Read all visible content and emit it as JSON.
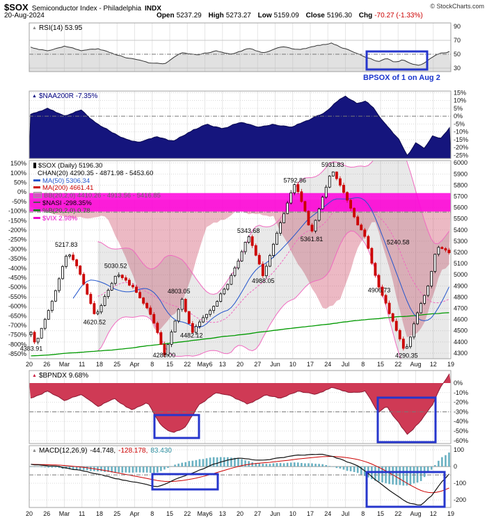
{
  "header": {
    "symbol": "$SOX",
    "name": "Semiconductor Index - Philadelphia",
    "exchange": "INDX",
    "copyright": "© StockCharts.com",
    "date": "20-Aug-2024",
    "quote": {
      "open_label": "Open",
      "open": "5237.29",
      "high_label": "High",
      "high": "5273.27",
      "low_label": "Low",
      "low": "5159.09",
      "close_label": "Close",
      "close": "5196.30",
      "chg_label": "Chg",
      "chg": "-70.27 (-1.33%)"
    }
  },
  "icons": {
    "panel_marker": "▲"
  },
  "annotations": {
    "bpsox_note": "BPSOX of 1 on Aug 2"
  },
  "xaxis": [
    "20",
    "26",
    "Mar",
    "11",
    "18",
    "25",
    "Apr",
    "8",
    "15",
    "22",
    "May6",
    "13",
    "20",
    "27",
    "Jun",
    "10",
    "17",
    "24",
    "Jul",
    "8",
    "15",
    "22",
    "Aug",
    "12",
    "19"
  ],
  "panels": {
    "rsi": {
      "label": "RSI(14) 53.95",
      "ticks": [
        "90",
        "70",
        "50",
        "30"
      ]
    },
    "naa": {
      "label": "$NAA200R -7.35%",
      "ticks": [
        "15%",
        "10%",
        "5%",
        "0%",
        "-5%",
        "-10%",
        "-15%",
        "-20%",
        "-25%"
      ]
    },
    "main": {
      "right_ticks": [
        "6000",
        "5900",
        "5800",
        "5700",
        "5600",
        "5500",
        "5400",
        "5300",
        "5200",
        "5100",
        "5000",
        "4900",
        "4800",
        "4700",
        "4600",
        "4500",
        "4400",
        "4300"
      ],
      "left_ticks": [
        "150%",
        "100%",
        "50%",
        "0%",
        "-50%",
        "-100%",
        "-150%",
        "-200%",
        "-250%",
        "-300%",
        "-350%",
        "-400%",
        "-450%",
        "-500%",
        "-550%",
        "-600%",
        "-650%",
        "-700%",
        "-750%",
        "-800%",
        "-850%"
      ],
      "legend": [
        {
          "swatch": "candle",
          "color": "#000000",
          "text": "$SOX (Daily) 5196.30"
        },
        {
          "swatch": "none",
          "color": "#000000",
          "text": "CHAN(20) 4290.35 - 4871.98 - 5453.60"
        },
        {
          "swatch": "line",
          "color": "#2255cc",
          "text": "MA(50) 5306.34"
        },
        {
          "swatch": "line",
          "color": "#cc0000",
          "text": "MA(200) 4661.41"
        },
        {
          "swatch": "band",
          "color": "#888888",
          "text": "BB(20,2,0) 4410.26 - 4913.56 - 5416.85"
        },
        {
          "swatch": "dash",
          "color": "#555555",
          "text": "$NASI -298.35%"
        },
        {
          "swatch": "line",
          "color": "#227722",
          "text": "%B(20,2,0) 0.78"
        },
        {
          "swatch": "line",
          "color": "#ee00cc",
          "text": "$VIX 2.98%"
        }
      ]
    },
    "bpndx": {
      "label": "$BPNDX 9.68%",
      "ticks": [
        "0%",
        "-10%",
        "-20%",
        "-30%",
        "-40%",
        "-50%",
        "-60%"
      ]
    },
    "macd": {
      "label": "MACD(12,26,9)",
      "v1": "-44.748,",
      "v2": "-128.178,",
      "v3": "83.430",
      "ticks": [
        "100",
        "0",
        "-100",
        "-200"
      ]
    }
  },
  "chart_data": [
    {
      "panel": "rsi",
      "type": "line",
      "name": "RSI(14)",
      "last": 53.95,
      "ylim": [
        25,
        95
      ],
      "hlines": [
        70,
        30
      ],
      "dash_line": 50,
      "waypoints": [
        [
          0,
          60
        ],
        [
          0.04,
          55
        ],
        [
          0.08,
          62
        ],
        [
          0.12,
          55
        ],
        [
          0.16,
          58
        ],
        [
          0.2,
          50
        ],
        [
          0.24,
          44
        ],
        [
          0.28,
          38
        ],
        [
          0.32,
          36
        ],
        [
          0.36,
          52
        ],
        [
          0.4,
          48
        ],
        [
          0.44,
          55
        ],
        [
          0.48,
          50
        ],
        [
          0.52,
          58
        ],
        [
          0.56,
          52
        ],
        [
          0.6,
          60
        ],
        [
          0.64,
          56
        ],
        [
          0.68,
          62
        ],
        [
          0.72,
          66
        ],
        [
          0.75,
          58
        ],
        [
          0.78,
          52
        ],
        [
          0.8,
          45
        ],
        [
          0.83,
          40
        ],
        [
          0.85,
          44
        ],
        [
          0.87,
          38
        ],
        [
          0.89,
          42
        ],
        [
          0.91,
          36
        ],
        [
          0.93,
          34
        ],
        [
          0.95,
          42
        ],
        [
          0.97,
          50
        ],
        [
          1,
          53.95
        ]
      ]
    },
    {
      "panel": "naa",
      "type": "area",
      "name": "$NAA200R",
      "last": -7.35,
      "ylim": [
        -27,
        16
      ],
      "dash_line": 0,
      "waypoints": [
        [
          0,
          1
        ],
        [
          0.04,
          5
        ],
        [
          0.08,
          0
        ],
        [
          0.12,
          4
        ],
        [
          0.15,
          -3
        ],
        [
          0.18,
          -8
        ],
        [
          0.22,
          -14
        ],
        [
          0.26,
          -17
        ],
        [
          0.3,
          -13
        ],
        [
          0.34,
          -16
        ],
        [
          0.38,
          -10
        ],
        [
          0.42,
          -5
        ],
        [
          0.46,
          -8
        ],
        [
          0.5,
          -4
        ],
        [
          0.54,
          -7
        ],
        [
          0.58,
          -5
        ],
        [
          0.62,
          -7
        ],
        [
          0.66,
          -3
        ],
        [
          0.7,
          2
        ],
        [
          0.73,
          9
        ],
        [
          0.75,
          13
        ],
        [
          0.78,
          8
        ],
        [
          0.8,
          10
        ],
        [
          0.82,
          5
        ],
        [
          0.84,
          -3
        ],
        [
          0.86,
          -9
        ],
        [
          0.88,
          -15
        ],
        [
          0.9,
          -25
        ],
        [
          0.92,
          -17
        ],
        [
          0.94,
          -21
        ],
        [
          0.96,
          -12
        ],
        [
          0.98,
          -14
        ],
        [
          1,
          -7.35
        ]
      ]
    },
    {
      "panel": "main",
      "type": "candlestick",
      "name": "$SOX Daily",
      "last": 5196.3,
      "ylim": [
        4250,
        6020
      ],
      "left_pct_ylim": [
        -875,
        165
      ],
      "vix_band": {
        "top": 5730,
        "bottom": 5565,
        "color": "#ff00dd"
      },
      "dash_line": 5560,
      "close_waypoints": [
        [
          0,
          4500
        ],
        [
          0.012,
          4383.91
        ],
        [
          0.05,
          4760
        ],
        [
          0.088,
          5217.83
        ],
        [
          0.115,
          5040
        ],
        [
          0.155,
          4620.52
        ],
        [
          0.205,
          5030.52
        ],
        [
          0.245,
          4880
        ],
        [
          0.285,
          4640
        ],
        [
          0.32,
          4288
        ],
        [
          0.36,
          4803.05
        ],
        [
          0.385,
          4482.12
        ],
        [
          0.43,
          4690
        ],
        [
          0.47,
          4920
        ],
        [
          0.52,
          5343.68
        ],
        [
          0.555,
          4988.05
        ],
        [
          0.6,
          5480
        ],
        [
          0.63,
          5792.86
        ],
        [
          0.652,
          5620
        ],
        [
          0.67,
          5361.81
        ],
        [
          0.72,
          5931.83
        ],
        [
          0.76,
          5640
        ],
        [
          0.8,
          5320
        ],
        [
          0.83,
          4906.73
        ],
        [
          0.895,
          4290.35
        ],
        [
          0.925,
          4660
        ],
        [
          0.95,
          4910
        ],
        [
          0.97,
          5240.58
        ],
        [
          1,
          5196.3
        ]
      ],
      "ma200_waypoints": [
        [
          0,
          4275
        ],
        [
          0.2,
          4330
        ],
        [
          0.4,
          4420
        ],
        [
          0.6,
          4510
        ],
        [
          0.8,
          4600
        ],
        [
          1,
          4661.41
        ]
      ],
      "nasi_pct_waypoints": [
        [
          0,
          -80
        ],
        [
          0.1,
          -140
        ],
        [
          0.18,
          -120
        ],
        [
          0.24,
          -420
        ],
        [
          0.3,
          -740
        ],
        [
          0.36,
          -600
        ],
        [
          0.42,
          -180
        ],
        [
          0.5,
          -100
        ],
        [
          0.58,
          -130
        ],
        [
          0.64,
          -380
        ],
        [
          0.7,
          -620
        ],
        [
          0.74,
          -560
        ],
        [
          0.78,
          -300
        ],
        [
          0.82,
          -140
        ],
        [
          0.86,
          -420
        ],
        [
          0.9,
          -780
        ],
        [
          0.94,
          -700
        ],
        [
          0.98,
          -420
        ],
        [
          1,
          -380
        ]
      ],
      "nasi_baseline_pct": -40,
      "price_labels": [
        {
          "t": 0.005,
          "price": 4383.91,
          "dy": 10,
          "text": "4383.91"
        },
        {
          "t": 0.088,
          "price": 5217.83,
          "dy": -5,
          "text": "5217.83"
        },
        {
          "t": 0.155,
          "price": 4620.52,
          "dy": 10,
          "text": "4620.52"
        },
        {
          "t": 0.205,
          "price": 5030.52,
          "dy": -5,
          "text": "5030.52"
        },
        {
          "t": 0.32,
          "price": 4288,
          "dy": 4,
          "text": "4288.00"
        },
        {
          "t": 0.355,
          "price": 4803.05,
          "dy": -5,
          "text": "4803.05"
        },
        {
          "t": 0.385,
          "price": 4482.12,
          "dy": 7,
          "text": "4482.12"
        },
        {
          "t": 0.52,
          "price": 5343.68,
          "dy": -5,
          "text": "5343.68"
        },
        {
          "t": 0.555,
          "price": 4988.05,
          "dy": 10,
          "text": "4988.05"
        },
        {
          "t": 0.63,
          "price": 5792.86,
          "dy": -5,
          "text": "5792.86"
        },
        {
          "t": 0.67,
          "price": 5361.81,
          "dy": 10,
          "text": "5361.81"
        },
        {
          "t": 0.72,
          "price": 5931.83,
          "dy": -5,
          "text": "5931.83"
        },
        {
          "t": 0.83,
          "price": 4906.73,
          "dy": 10,
          "text": "4906.73"
        },
        {
          "t": 0.895,
          "price": 4290.35,
          "dy": 5,
          "text": "4290.35"
        },
        {
          "t": 0.875,
          "price": 5240.58,
          "dy": -5,
          "text": "5240.58"
        }
      ]
    },
    {
      "panel": "bpndx",
      "type": "area",
      "name": "$BPNDX",
      "last": 9.68,
      "ylim": [
        -63,
        13
      ],
      "dash_line": -30,
      "waypoints": [
        [
          0,
          -16
        ],
        [
          0.04,
          -8
        ],
        [
          0.08,
          -18
        ],
        [
          0.12,
          -12
        ],
        [
          0.16,
          -24
        ],
        [
          0.2,
          -16
        ],
        [
          0.24,
          -28
        ],
        [
          0.28,
          -20
        ],
        [
          0.31,
          -44
        ],
        [
          0.34,
          -52
        ],
        [
          0.37,
          -46
        ],
        [
          0.4,
          -24
        ],
        [
          0.44,
          -10
        ],
        [
          0.48,
          -14
        ],
        [
          0.52,
          -22
        ],
        [
          0.56,
          -12
        ],
        [
          0.6,
          -16
        ],
        [
          0.64,
          -8
        ],
        [
          0.68,
          -12
        ],
        [
          0.72,
          -5
        ],
        [
          0.76,
          -10
        ],
        [
          0.8,
          -8
        ],
        [
          0.83,
          -30
        ],
        [
          0.85,
          -24
        ],
        [
          0.87,
          -36
        ],
        [
          0.9,
          -54
        ],
        [
          0.93,
          -40
        ],
        [
          0.96,
          -22
        ],
        [
          0.98,
          -4
        ],
        [
          1,
          9.68
        ]
      ]
    },
    {
      "panel": "macd",
      "type": "macd",
      "name": "MACD(12,26,9)",
      "last": -44.748,
      "ylim": [
        -245,
        125
      ],
      "dash_line": -50,
      "waypoints": [
        [
          0,
          15
        ],
        [
          0.05,
          5
        ],
        [
          0.1,
          -15
        ],
        [
          0.15,
          -40
        ],
        [
          0.2,
          -70
        ],
        [
          0.25,
          -95
        ],
        [
          0.3,
          -125
        ],
        [
          0.33,
          -95
        ],
        [
          0.37,
          -55
        ],
        [
          0.41,
          -15
        ],
        [
          0.45,
          25
        ],
        [
          0.5,
          55
        ],
        [
          0.55,
          35
        ],
        [
          0.6,
          55
        ],
        [
          0.65,
          70
        ],
        [
          0.7,
          75
        ],
        [
          0.74,
          45
        ],
        [
          0.78,
          5
        ],
        [
          0.82,
          -70
        ],
        [
          0.86,
          -150
        ],
        [
          0.9,
          -215
        ],
        [
          0.93,
          -235
        ],
        [
          0.96,
          -170
        ],
        [
          0.98,
          -95
        ],
        [
          1,
          -44.748
        ]
      ]
    }
  ]
}
